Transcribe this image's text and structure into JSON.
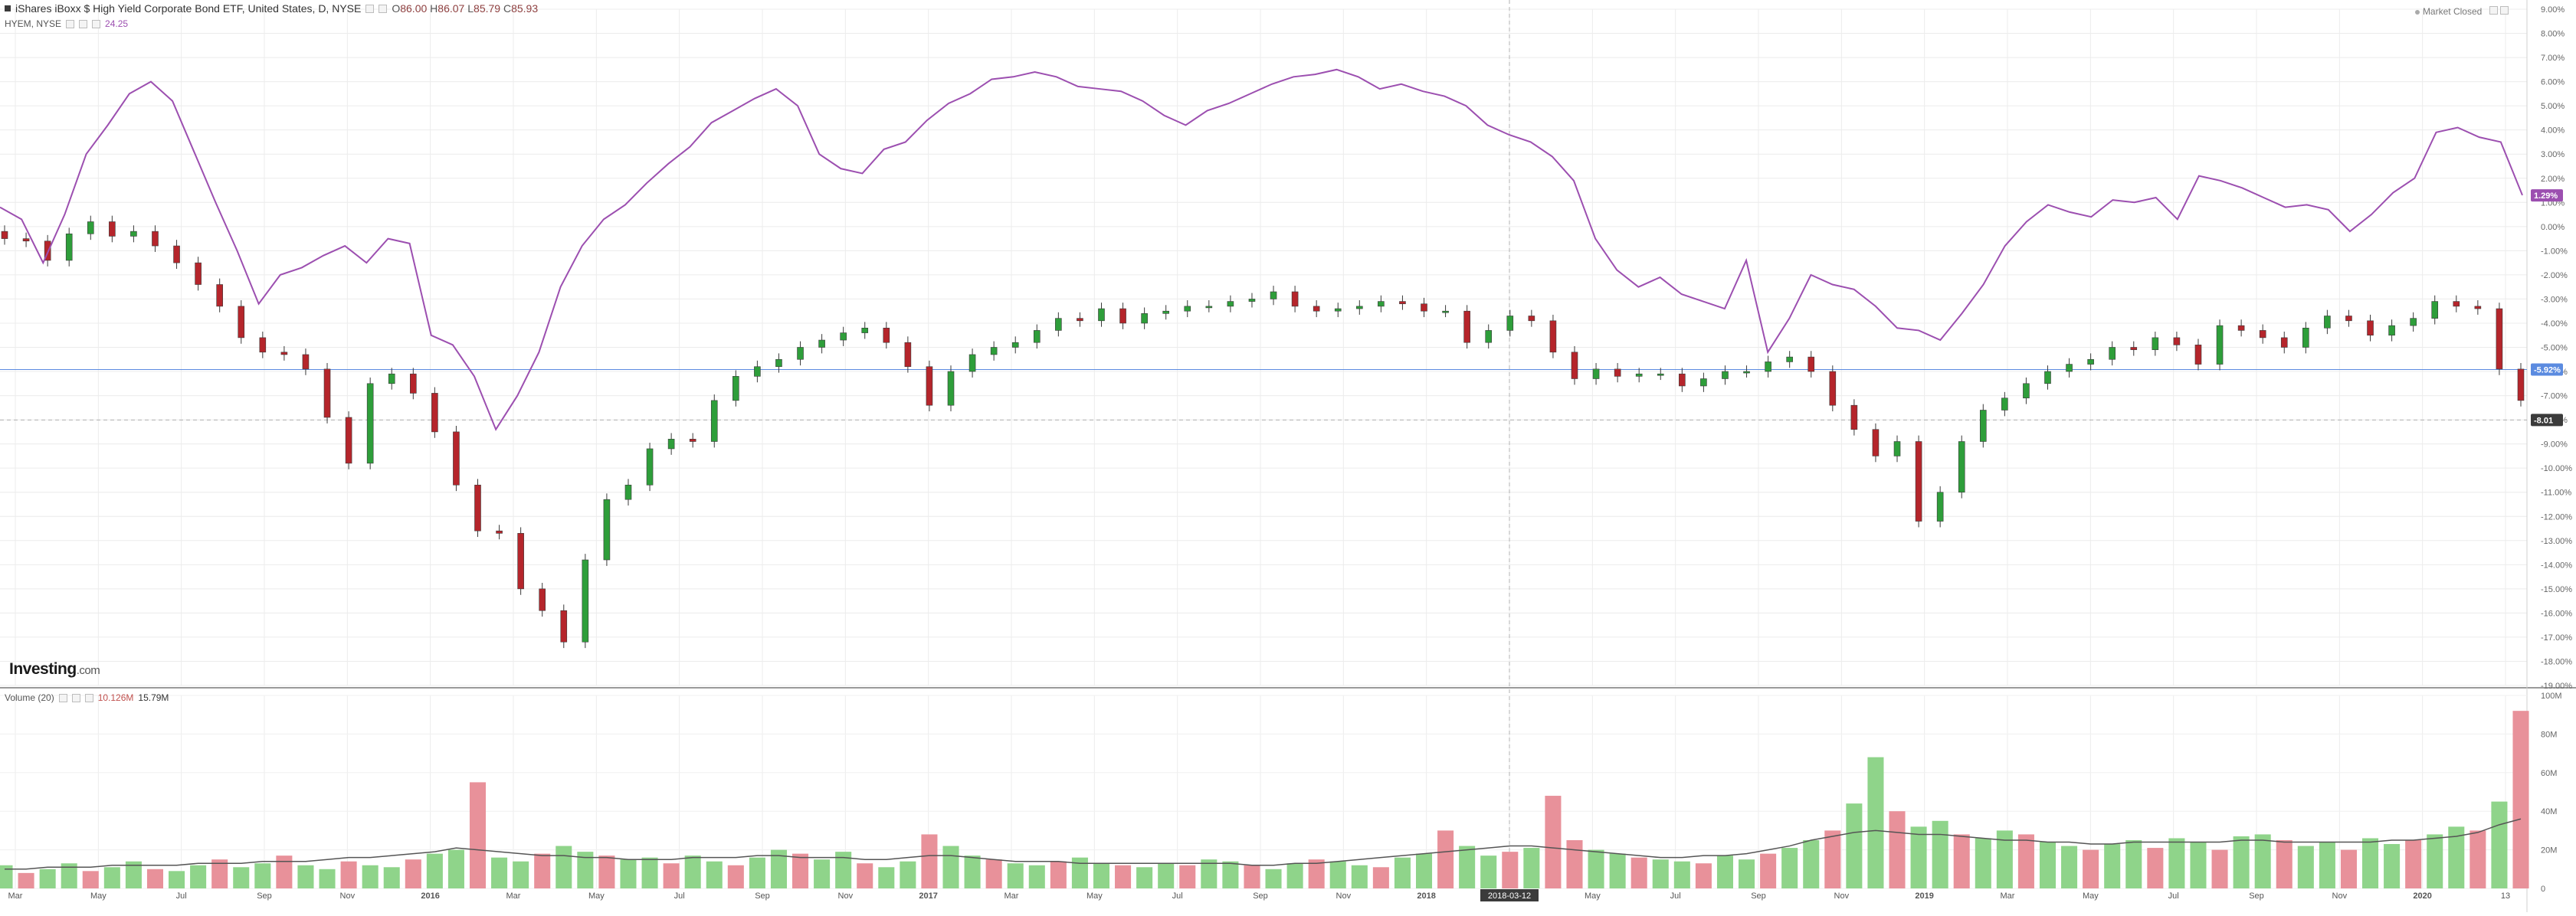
{
  "header": {
    "title": "iShares iBoxx $ High Yield Corporate Bond ETF, United States, D, NYSE",
    "ohlc": {
      "o_label": "O",
      "o": "86.00",
      "h_label": "H",
      "h": "86.07",
      "l_label": "L",
      "l": "85.79",
      "c_label": "C",
      "c": "85.93"
    },
    "compare_label": "HYEM, NYSE",
    "compare_value": "24.25",
    "status": "Market Closed"
  },
  "volume_legend": {
    "label": "Volume (20)",
    "value_a": "10.126M",
    "value_b": "15.79M"
  },
  "logo": {
    "brand": "Investing",
    "suffix": ".com"
  },
  "colors": {
    "hyg": "#3a3a3a",
    "up": "#2e9e3a",
    "down": "#b5252b",
    "hyem": "#9c4fb0",
    "vol_up": "#8fd48a",
    "vol_down": "#e8919a",
    "vol_ma": "#555555",
    "ref_line": "#5b8be0"
  },
  "chart_data": {
    "type": "line",
    "title": "iShares iBoxx $ High Yield Corporate Bond ETF, United States, D, NYSE",
    "xlabel": "",
    "ylabel": "",
    "x_ticks": [
      "Mar",
      "May",
      "Jul",
      "Sep",
      "Nov",
      "2016",
      "Mar",
      "May",
      "Jul",
      "Sep",
      "Nov",
      "2017",
      "Mar",
      "May",
      "Jul",
      "Sep",
      "Nov",
      "2018",
      "2018-03-12",
      "May",
      "Jul",
      "Sep",
      "Nov",
      "2019",
      "Mar",
      "May",
      "Jul",
      "Sep",
      "Nov",
      "2020",
      "13"
    ],
    "y_ticks": [
      "9.00%",
      "8.00%",
      "7.00%",
      "6.00%",
      "5.00%",
      "4.00%",
      "3.00%",
      "2.00%",
      "1.00%",
      "0.00%",
      "-1.00%",
      "-2.00%",
      "-3.00%",
      "-4.00%",
      "-5.00%",
      "-6.00%",
      "-7.00%",
      "-8.00%",
      "-9.00%",
      "-10.00%",
      "-11.00%",
      "-12.00%",
      "-13.00%",
      "-14.00%",
      "-15.00%",
      "-16.00%",
      "-17.00%",
      "-18.00%",
      "-19.00%"
    ],
    "ylim": [
      -19,
      9
    ],
    "crosshair_x_label": "2018-03-12",
    "last_value_labels": {
      "hyem": "1.29%",
      "hyg": "-5.92%",
      "crosshair": "-8.01"
    },
    "grid": true,
    "series": [
      {
        "name": "HYG",
        "kind": "candlestick",
        "values": [
          -0.5,
          -0.6,
          -1.4,
          -0.3,
          0.2,
          -0.4,
          -0.2,
          -0.8,
          -1.5,
          -2.4,
          -3.3,
          -4.6,
          -5.2,
          -5.3,
          -5.9,
          -7.9,
          -9.8,
          -6.5,
          -6.1,
          -6.9,
          -8.5,
          -10.7,
          -12.6,
          -12.7,
          -15.0,
          -15.9,
          -17.2,
          -13.8,
          -11.3,
          -10.7,
          -9.2,
          -8.8,
          -8.9,
          -7.2,
          -6.2,
          -5.8,
          -5.5,
          -5.0,
          -4.7,
          -4.4,
          -4.2,
          -4.8,
          -5.8,
          -7.4,
          -6.0,
          -5.3,
          -5.0,
          -4.8,
          -4.3,
          -3.8,
          -3.9,
          -3.4,
          -4.0,
          -3.6,
          -3.5,
          -3.3,
          -3.3,
          -3.1,
          -3.0,
          -2.7,
          -3.3,
          -3.5,
          -3.4,
          -3.3,
          -3.1,
          -3.2,
          -3.5,
          -3.5,
          -4.8,
          -4.3,
          -3.7,
          -3.9,
          -5.2,
          -6.3,
          -5.9,
          -6.2,
          -6.1,
          -6.1,
          -6.6,
          -6.3,
          -6.0,
          -6.0,
          -5.6,
          -5.4,
          -6.0,
          -7.4,
          -8.4,
          -9.5,
          -8.9,
          -12.2,
          -11.0,
          -8.9,
          -7.6,
          -7.1,
          -6.5,
          -6.0,
          -5.7,
          -5.5,
          -5.0,
          -5.1,
          -4.6,
          -4.9,
          -5.7,
          -4.1,
          -4.3,
          -4.6,
          -5.0,
          -4.2,
          -3.7,
          -3.9,
          -4.5,
          -4.1,
          -3.8,
          -3.1,
          -3.3,
          -3.4,
          -5.9,
          -7.2
        ]
      },
      {
        "name": "HYEM",
        "kind": "line",
        "values": [
          0.8,
          0.3,
          -1.5,
          0.5,
          3.0,
          4.2,
          5.5,
          6.0,
          5.2,
          3.1,
          1.0,
          -1.0,
          -3.2,
          -2.0,
          -1.7,
          -1.2,
          -0.8,
          -1.5,
          -0.5,
          -0.7,
          -4.5,
          -4.9,
          -6.2,
          -8.4,
          -7.0,
          -5.2,
          -2.5,
          -0.8,
          0.3,
          0.9,
          1.8,
          2.6,
          3.3,
          4.3,
          4.8,
          5.3,
          5.7,
          5.0,
          3.0,
          2.4,
          2.2,
          3.2,
          3.5,
          4.4,
          5.1,
          5.5,
          6.1,
          6.2,
          6.4,
          6.2,
          5.8,
          5.7,
          5.6,
          5.2,
          4.6,
          4.2,
          4.8,
          5.1,
          5.5,
          5.9,
          6.2,
          6.3,
          6.5,
          6.2,
          5.7,
          5.9,
          5.6,
          5.4,
          5.0,
          4.2,
          3.8,
          3.5,
          2.9,
          1.9,
          -0.5,
          -1.8,
          -2.5,
          -2.1,
          -2.8,
          -3.1,
          -3.4,
          -1.4,
          -5.2,
          -3.8,
          -2.0,
          -2.4,
          -2.6,
          -3.3,
          -4.2,
          -4.3,
          -4.7,
          -3.6,
          -2.4,
          -0.8,
          0.2,
          0.9,
          0.6,
          0.4,
          1.1,
          1.0,
          1.2,
          0.3,
          2.1,
          1.9,
          1.6,
          1.2,
          0.8,
          0.9,
          0.7,
          -0.2,
          0.5,
          1.4,
          2.0,
          3.9,
          4.1,
          3.7,
          3.5,
          1.3
        ]
      },
      {
        "name": "Volume (20)",
        "kind": "bar",
        "values": [
          12,
          8,
          10,
          13,
          9,
          11,
          14,
          10,
          9,
          12,
          15,
          11,
          13,
          17,
          12,
          10,
          14,
          12,
          11,
          15,
          18,
          20,
          55,
          16,
          14,
          18,
          22,
          19,
          17,
          15,
          16,
          13,
          17,
          14,
          12,
          16,
          20,
          18,
          15,
          19,
          13,
          11,
          14,
          28,
          22,
          17,
          15,
          13,
          12,
          14,
          16,
          13,
          12,
          11,
          13,
          12,
          15,
          14,
          12,
          10,
          13,
          15,
          14,
          12,
          11,
          16,
          18,
          30,
          22,
          17,
          19,
          21,
          48,
          25,
          20,
          18,
          16,
          15,
          14,
          13,
          17,
          15,
          18,
          21,
          25,
          30,
          44,
          68,
          40,
          32,
          35,
          28,
          26,
          30,
          28,
          24,
          22,
          20,
          23,
          25,
          21,
          26,
          24,
          20,
          27,
          28,
          25,
          22,
          24,
          20,
          26,
          23,
          25,
          28,
          32,
          30,
          45,
          92
        ]
      },
      {
        "name": "Volume MA",
        "kind": "line",
        "values": [
          10,
          10,
          11,
          11,
          11,
          12,
          12,
          12,
          12,
          13,
          13,
          13,
          14,
          14,
          14,
          15,
          16,
          16,
          17,
          18,
          19,
          21,
          20,
          19,
          18,
          17,
          17,
          16,
          16,
          15,
          15,
          15,
          16,
          16,
          16,
          17,
          17,
          16,
          16,
          16,
          15,
          15,
          16,
          17,
          17,
          16,
          15,
          14,
          14,
          14,
          13,
          13,
          13,
          13,
          13,
          13,
          13,
          13,
          12,
          12,
          13,
          13,
          14,
          15,
          16,
          17,
          18,
          19,
          20,
          21,
          22,
          22,
          21,
          20,
          19,
          18,
          17,
          16,
          16,
          17,
          17,
          18,
          20,
          22,
          25,
          27,
          29,
          30,
          29,
          28,
          28,
          27,
          26,
          25,
          25,
          24,
          24,
          23,
          23,
          24,
          24,
          24,
          24,
          24,
          25,
          25,
          24,
          24,
          24,
          24,
          24,
          25,
          25,
          26,
          27,
          29,
          33,
          36
        ]
      }
    ]
  }
}
